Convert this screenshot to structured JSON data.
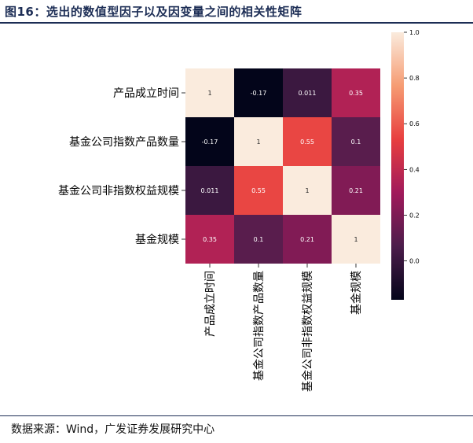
{
  "figure": {
    "title": "图16：选出的数值型因子以及因变量之间的相关性矩阵",
    "source": "数据来源：Wind，广发证券发展研究中心"
  },
  "chart_data": {
    "type": "heatmap",
    "rows": [
      "产品成立时间",
      "基金公司指数产品数量",
      "基金公司非指数权益规模",
      "基金规模"
    ],
    "columns": [
      "产品成立时间",
      "基金公司指数产品数量",
      "基金公司非指数权益规模",
      "基金规模"
    ],
    "values": [
      [
        1,
        -0.17,
        0.011,
        0.35
      ],
      [
        -0.17,
        1,
        0.55,
        0.1
      ],
      [
        0.011,
        0.55,
        1,
        0.21
      ],
      [
        0.35,
        0.1,
        0.21,
        1
      ]
    ],
    "labels": [
      [
        "1",
        "-0.17",
        "0.011",
        "0.35"
      ],
      [
        "-0.17",
        "1",
        "0.55",
        "0.1"
      ],
      [
        "0.011",
        "0.55",
        "1",
        "0.21"
      ],
      [
        "0.35",
        "0.1",
        "0.21",
        "1"
      ]
    ],
    "colorbar": {
      "min": -0.17,
      "max": 1.0,
      "ticks": [
        0.0,
        0.2,
        0.4,
        0.6,
        0.8,
        1.0
      ],
      "tick_labels": [
        "0.0",
        "0.2",
        "0.4",
        "0.6",
        "0.8",
        "1.0"
      ],
      "colormap": "rocket",
      "colors": [
        "#03051a",
        "#4c1d4b",
        "#a11a5b",
        "#e83f3f",
        "#f69c73",
        "#faebdd"
      ]
    }
  }
}
